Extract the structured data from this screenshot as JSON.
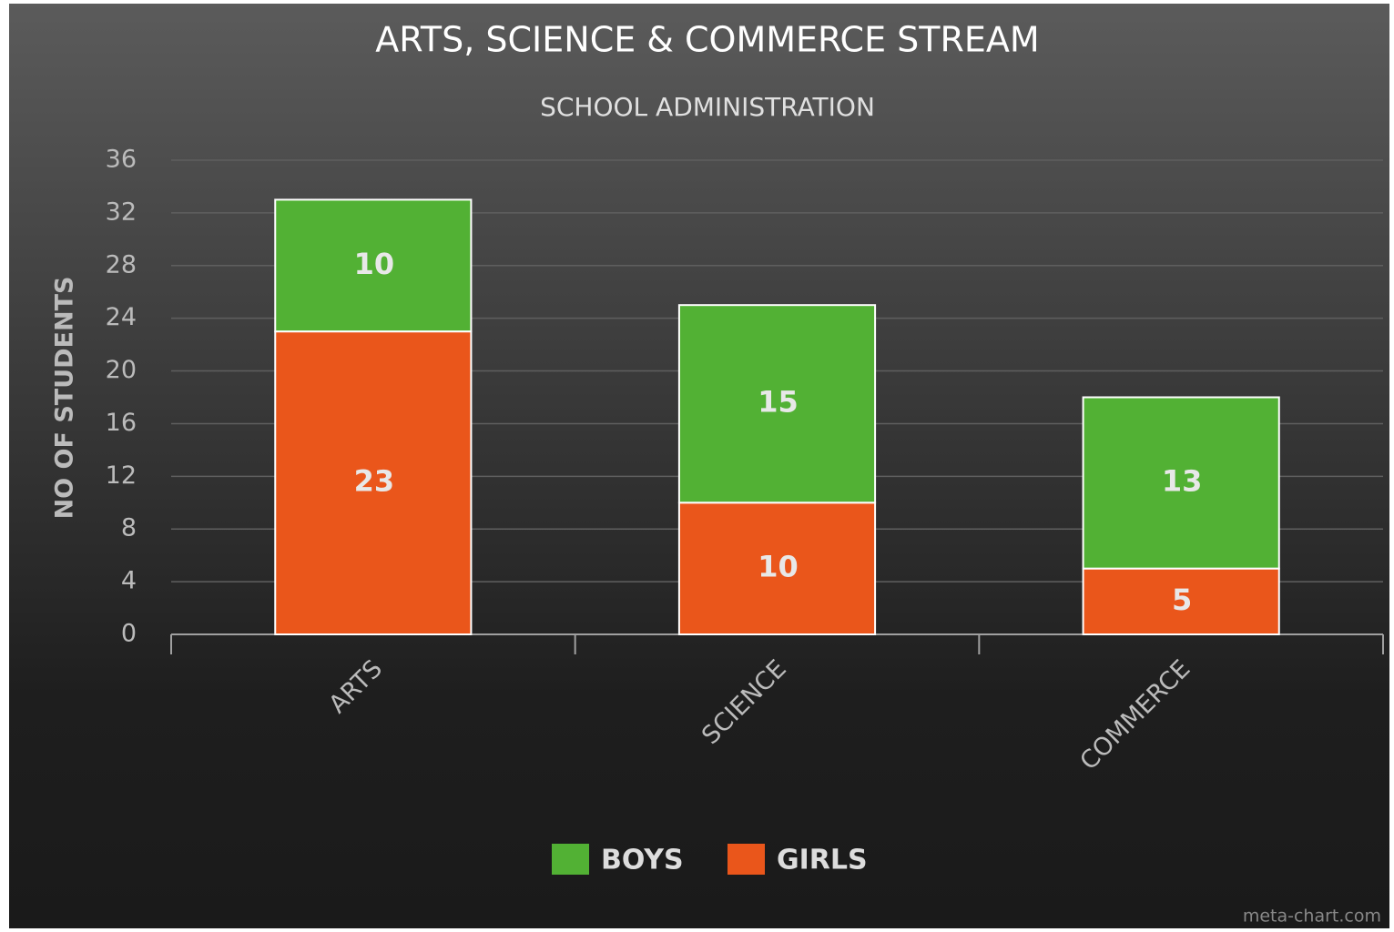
{
  "chart_data": {
    "type": "stacked_bar",
    "title": "ARTS, SCIENCE & COMMERCE STREAM",
    "subtitle": "SCHOOL ADMINISTRATION",
    "y_label": "NO OF STUDENTS",
    "watermark": "meta-chart.com",
    "categories": [
      "ARTS",
      "SCIENCE",
      "COMMERCE"
    ],
    "series": [
      {
        "name": "BOYS",
        "color": "#52b134",
        "values": [
          10,
          15,
          13
        ]
      },
      {
        "name": "GIRLS",
        "color": "#ea561b",
        "values": [
          23,
          10,
          5
        ]
      }
    ],
    "ylim": [
      0,
      36
    ],
    "yticks": [
      0,
      4,
      8,
      12,
      16,
      20,
      24,
      28,
      32,
      36
    ],
    "grid": true,
    "legend": "bottom"
  }
}
